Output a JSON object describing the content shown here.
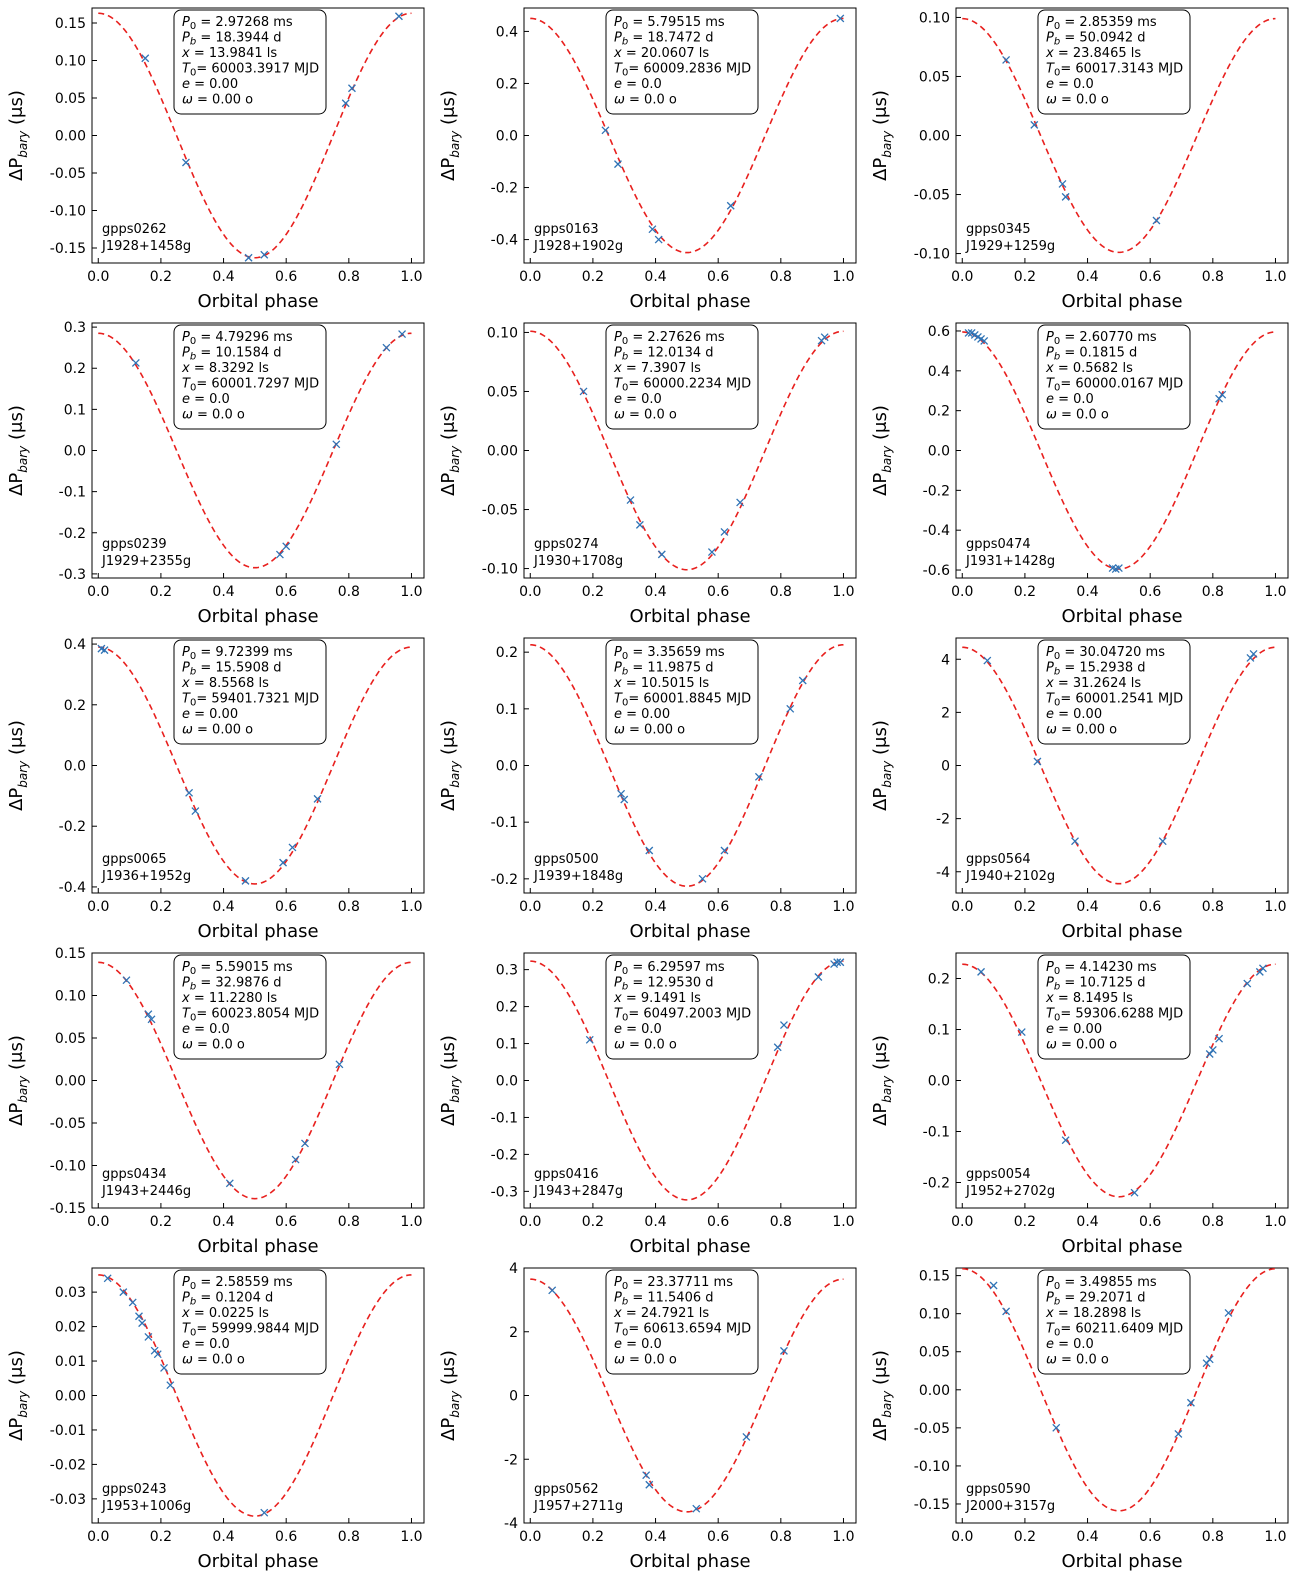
{
  "common": {
    "xlabel": "Orbital phase",
    "ylabel_prefix": "ΔP",
    "ylabel_sub": "bary",
    "ylabel_unit": " (μs)",
    "colors": {
      "curve": "#e8201e",
      "marker": "#2f73b5",
      "axis": "#000000"
    }
  },
  "chart_data": [
    {
      "type": "scatter",
      "name": "gpps0262",
      "psr": "J1928+1458g",
      "ylim": [
        -0.17,
        0.17
      ],
      "yticks": [
        "0.15",
        "0.10",
        "0.05",
        "0.00",
        "-0.05",
        "-0.10",
        "-0.15"
      ],
      "ytick_values": [
        0.15,
        0.1,
        0.05,
        0.0,
        -0.05,
        -0.1,
        -0.15
      ],
      "xticks": [
        "0.0",
        "0.2",
        "0.4",
        "0.6",
        "0.8",
        "1.0"
      ],
      "amplitude": 0.163,
      "x": [
        0.15,
        0.28,
        0.48,
        0.53,
        0.79,
        0.81,
        0.96
      ],
      "y": [
        0.103,
        -0.036,
        -0.163,
        -0.159,
        0.043,
        0.063,
        0.159
      ],
      "params": {
        "P0": "2.97268 ms",
        "Pb": "18.3944 d",
        "x": "13.9841 ls",
        "T0": "60003.3917 MJD",
        "e": "0.00",
        "omega": "0.00 o"
      }
    },
    {
      "type": "scatter",
      "name": "gpps0163",
      "psr": "J1928+1902g",
      "ylim": [
        -0.49,
        0.49
      ],
      "yticks": [
        "0.4",
        "0.2",
        "0.0",
        "-0.2",
        "-0.4"
      ],
      "ytick_values": [
        0.4,
        0.2,
        0.0,
        -0.2,
        -0.4
      ],
      "xticks": [
        "0.0",
        "0.2",
        "0.4",
        "0.6",
        "0.8",
        "1.0"
      ],
      "amplitude": 0.45,
      "x": [
        0.24,
        0.28,
        0.39,
        0.41,
        0.64,
        0.99
      ],
      "y": [
        0.02,
        -0.11,
        -0.36,
        -0.4,
        -0.27,
        0.45
      ],
      "params": {
        "P0": "5.79515 ms",
        "Pb": "18.7472 d",
        "x": "20.0607 ls",
        "T0": "60009.2836 MJD",
        "e": "0.0",
        "omega": "0.0 o"
      }
    },
    {
      "type": "scatter",
      "name": "gpps0345",
      "psr": "J1929+1259g",
      "ylim": [
        -0.108,
        0.108
      ],
      "yticks": [
        "0.10",
        "0.05",
        "0.00",
        "-0.05",
        "-0.10"
      ],
      "ytick_values": [
        0.1,
        0.05,
        0.0,
        -0.05,
        -0.1
      ],
      "xticks": [
        "0.0",
        "0.2",
        "0.4",
        "0.6",
        "0.8",
        "1.0"
      ],
      "amplitude": 0.099,
      "x": [
        0.14,
        0.23,
        0.32,
        0.33,
        0.62
      ],
      "y": [
        0.064,
        0.009,
        -0.041,
        -0.052,
        -0.072
      ],
      "params": {
        "P0": "2.85359 ms",
        "Pb": "50.0942 d",
        "x": "23.8465 ls",
        "T0": "60017.3143 MJD",
        "e": "0.0",
        "omega": "0.0 o"
      }
    },
    {
      "type": "scatter",
      "name": "gpps0239",
      "psr": "J1929+2355g",
      "ylim": [
        -0.31,
        0.31
      ],
      "yticks": [
        "0.3",
        "0.2",
        "0.1",
        "0.0",
        "-0.1",
        "-0.2",
        "-0.3"
      ],
      "ytick_values": [
        0.3,
        0.2,
        0.1,
        0.0,
        -0.1,
        -0.2,
        -0.3
      ],
      "xticks": [
        "0.0",
        "0.2",
        "0.4",
        "0.6",
        "0.8",
        "1.0"
      ],
      "amplitude": 0.285,
      "x": [
        0.12,
        0.58,
        0.6,
        0.76,
        0.92,
        0.97
      ],
      "y": [
        0.213,
        -0.253,
        -0.233,
        0.015,
        0.25,
        0.283
      ],
      "params": {
        "P0": "4.79296 ms",
        "Pb": "10.1584 d",
        "x": "8.3292 ls",
        "T0": "60001.7297 MJD",
        "e": "0.0",
        "omega": "0.0 o"
      }
    },
    {
      "type": "scatter",
      "name": "gpps0274",
      "psr": "J1930+1708g",
      "ylim": [
        -0.108,
        0.108
      ],
      "yticks": [
        "0.10",
        "0.05",
        "0.00",
        "-0.05",
        "-0.10"
      ],
      "ytick_values": [
        0.1,
        0.05,
        0.0,
        -0.05,
        -0.1
      ],
      "xticks": [
        "0.0",
        "0.2",
        "0.4",
        "0.6",
        "0.8",
        "1.0"
      ],
      "amplitude": 0.101,
      "x": [
        0.17,
        0.32,
        0.35,
        0.42,
        0.58,
        0.62,
        0.67,
        0.93,
        0.94
      ],
      "y": [
        0.05,
        -0.042,
        -0.063,
        -0.088,
        -0.086,
        -0.069,
        -0.044,
        0.093,
        0.096
      ],
      "params": {
        "P0": "2.27626 ms",
        "Pb": "12.0134 d",
        "x": "7.3907 ls",
        "T0": "60000.2234 MJD",
        "e": "0.0",
        "omega": "0.0 o"
      }
    },
    {
      "type": "scatter",
      "name": "gpps0474",
      "psr": "J1931+1428g",
      "ylim": [
        -0.64,
        0.64
      ],
      "yticks": [
        "0.6",
        "0.4",
        "0.2",
        "0.0",
        "-0.2",
        "-0.4",
        "-0.6"
      ],
      "ytick_values": [
        0.6,
        0.4,
        0.2,
        0.0,
        -0.2,
        -0.4,
        -0.6
      ],
      "xticks": [
        "0.0",
        "0.2",
        "0.4",
        "0.6",
        "0.8",
        "1.0"
      ],
      "amplitude": 0.595,
      "x": [
        0.02,
        0.03,
        0.04,
        0.05,
        0.06,
        0.07,
        0.48,
        0.49,
        0.5,
        0.82,
        0.83
      ],
      "y": [
        0.59,
        0.59,
        0.58,
        0.57,
        0.56,
        0.55,
        -0.59,
        -0.595,
        -0.59,
        0.26,
        0.28
      ],
      "params": {
        "P0": "2.60770 ms",
        "Pb": "0.1815 d",
        "x": "0.5682 ls",
        "T0": "60000.0167 MJD",
        "e": "0.0",
        "omega": "0.0 o"
      }
    },
    {
      "type": "scatter",
      "name": "gpps0065",
      "psr": "J1936+1952g",
      "ylim": [
        -0.42,
        0.42
      ],
      "yticks": [
        "0.4",
        "0.2",
        "0.0",
        "-0.2",
        "-0.4"
      ],
      "ytick_values": [
        0.4,
        0.2,
        0.0,
        -0.2,
        -0.4
      ],
      "xticks": [
        "0.0",
        "0.2",
        "0.4",
        "0.6",
        "0.8",
        "1.0"
      ],
      "amplitude": 0.39,
      "x": [
        0.01,
        0.02,
        0.29,
        0.31,
        0.47,
        0.59,
        0.62,
        0.7
      ],
      "y": [
        0.385,
        0.38,
        -0.09,
        -0.15,
        -0.38,
        -0.32,
        -0.27,
        -0.11
      ],
      "params": {
        "P0": "9.72399 ms",
        "Pb": "15.5908 d",
        "x": "8.5568 ls",
        "T0": "59401.7321 MJD",
        "e": "0.00",
        "omega": "0.00 o"
      }
    },
    {
      "type": "scatter",
      "name": "gpps0500",
      "psr": "J1939+1848g",
      "ylim": [
        -0.225,
        0.225
      ],
      "yticks": [
        "0.2",
        "0.1",
        "0.0",
        "-0.1",
        "-0.2"
      ],
      "ytick_values": [
        0.2,
        0.1,
        0.0,
        -0.1,
        -0.2
      ],
      "xticks": [
        "0.0",
        "0.2",
        "0.4",
        "0.6",
        "0.8",
        "1.0"
      ],
      "amplitude": 0.213,
      "x": [
        0.29,
        0.3,
        0.38,
        0.55,
        0.62,
        0.73,
        0.83,
        0.87
      ],
      "y": [
        -0.05,
        -0.06,
        -0.15,
        -0.2,
        -0.15,
        -0.02,
        0.1,
        0.15
      ],
      "params": {
        "P0": "3.35659 ms",
        "Pb": "11.9875 d",
        "x": "10.5015 ls",
        "T0": "60001.8845 MJD",
        "e": "0.00",
        "omega": "0.00 o"
      }
    },
    {
      "type": "scatter",
      "name": "gpps0564",
      "psr": "J1940+2102g",
      "ylim": [
        -4.8,
        4.8
      ],
      "yticks": [
        "4",
        "2",
        "0",
        "-2",
        "-4"
      ],
      "ytick_values": [
        4,
        2,
        0,
        -2,
        -4
      ],
      "xticks": [
        "0.0",
        "0.2",
        "0.4",
        "0.6",
        "0.8",
        "1.0"
      ],
      "amplitude": 4.45,
      "x": [
        0.08,
        0.24,
        0.36,
        0.64,
        0.92,
        0.93
      ],
      "y": [
        3.95,
        0.15,
        -2.85,
        -2.85,
        4.05,
        4.2
      ],
      "params": {
        "P0": "30.04720 ms",
        "Pb": "15.2938 d",
        "x": "31.2624 ls",
        "T0": "60001.2541 MJD",
        "e": "0.00",
        "omega": "0.00 o"
      }
    },
    {
      "type": "scatter",
      "name": "gpps0434",
      "psr": "J1943+2446g",
      "ylim": [
        -0.15,
        0.15
      ],
      "yticks": [
        "0.15",
        "0.10",
        "0.05",
        "0.00",
        "-0.05",
        "-0.10",
        "-0.15"
      ],
      "ytick_values": [
        0.15,
        0.1,
        0.05,
        0.0,
        -0.05,
        -0.1,
        -0.15
      ],
      "xticks": [
        "0.0",
        "0.2",
        "0.4",
        "0.6",
        "0.8",
        "1.0"
      ],
      "amplitude": 0.139,
      "x": [
        0.09,
        0.16,
        0.17,
        0.42,
        0.63,
        0.66,
        0.77
      ],
      "y": [
        0.118,
        0.078,
        0.072,
        -0.121,
        -0.093,
        -0.074,
        0.019
      ],
      "params": {
        "P0": "5.59015 ms",
        "Pb": "32.9876 d",
        "x": "11.2280 ls",
        "T0": "60023.8054 MJD",
        "e": "0.0",
        "omega": "0.0 o"
      }
    },
    {
      "type": "scatter",
      "name": "gpps0416",
      "psr": "J1943+2847g",
      "ylim": [
        -0.345,
        0.345
      ],
      "yticks": [
        "0.3",
        "0.2",
        "0.1",
        "0.0",
        "-0.1",
        "-0.2",
        "-0.3"
      ],
      "ytick_values": [
        0.3,
        0.2,
        0.1,
        0.0,
        -0.1,
        -0.2,
        -0.3
      ],
      "xticks": [
        "0.0",
        "0.2",
        "0.4",
        "0.6",
        "0.8",
        "1.0"
      ],
      "amplitude": 0.323,
      "x": [
        0.19,
        0.79,
        0.81,
        0.92,
        0.97,
        0.98,
        0.99
      ],
      "y": [
        0.11,
        0.09,
        0.15,
        0.28,
        0.315,
        0.32,
        0.32
      ],
      "params": {
        "P0": "6.29597 ms",
        "Pb": "12.9530 d",
        "x": "9.1491 ls",
        "T0": "60497.2003 MJD",
        "e": "0.0",
        "omega": "0.0 o"
      }
    },
    {
      "type": "scatter",
      "name": "gpps0054",
      "psr": "J1952+2702g",
      "ylim": [
        -0.25,
        0.25
      ],
      "yticks": [
        "0.2",
        "0.1",
        "0.0",
        "-0.1",
        "-0.2"
      ],
      "ytick_values": [
        0.2,
        0.1,
        0.0,
        -0.1,
        -0.2
      ],
      "xticks": [
        "0.0",
        "0.2",
        "0.4",
        "0.6",
        "0.8",
        "1.0"
      ],
      "amplitude": 0.228,
      "x": [
        0.06,
        0.19,
        0.33,
        0.55,
        0.79,
        0.8,
        0.82,
        0.91,
        0.95,
        0.96
      ],
      "y": [
        0.213,
        0.095,
        -0.117,
        -0.22,
        0.052,
        0.06,
        0.082,
        0.19,
        0.213,
        0.22
      ],
      "params": {
        "P0": "4.14230 ms",
        "Pb": "10.7125 d",
        "x": "8.1495 ls",
        "T0": "59306.6288 MJD",
        "e": "0.00",
        "omega": "0.00 o"
      }
    },
    {
      "type": "scatter",
      "name": "gpps0243",
      "psr": "J1953+1006g",
      "ylim": [
        -0.037,
        0.037
      ],
      "yticks": [
        "0.03",
        "0.02",
        "0.01",
        "0.00",
        "-0.01",
        "-0.02",
        "-0.03"
      ],
      "ytick_values": [
        0.03,
        0.02,
        0.01,
        0.0,
        -0.01,
        -0.02,
        -0.03
      ],
      "xticks": [
        "0.0",
        "0.2",
        "0.4",
        "0.6",
        "0.8",
        "1.0"
      ],
      "amplitude": 0.035,
      "x": [
        0.03,
        0.08,
        0.11,
        0.13,
        0.14,
        0.16,
        0.18,
        0.19,
        0.21,
        0.23,
        0.53
      ],
      "y": [
        0.034,
        0.03,
        0.027,
        0.023,
        0.021,
        0.017,
        0.013,
        0.012,
        0.008,
        0.003,
        -0.034
      ],
      "params": {
        "P0": "2.58559 ms",
        "Pb": "0.1204 d",
        "x": "0.0225 ls",
        "T0": "59999.9844 MJD",
        "e": "0.0",
        "omega": "0.0 o"
      }
    },
    {
      "type": "scatter",
      "name": "gpps0562",
      "psr": "J1957+2711g",
      "ylim": [
        -4.0,
        4.0
      ],
      "yticks": [
        "4",
        "2",
        "0",
        "-2",
        "-4"
      ],
      "ytick_values": [
        4,
        2,
        0,
        -2,
        -4
      ],
      "xticks": [
        "0.0",
        "0.2",
        "0.4",
        "0.6",
        "0.8",
        "1.0"
      ],
      "amplitude": 3.65,
      "x": [
        0.07,
        0.37,
        0.38,
        0.53,
        0.69,
        0.81
      ],
      "y": [
        3.3,
        -2.5,
        -2.8,
        -3.55,
        -1.3,
        1.4
      ],
      "params": {
        "P0": "23.37711 ms",
        "Pb": "11.5406 d",
        "x": "24.7921 ls",
        "T0": "60613.6594 MJD",
        "e": "0.0",
        "omega": "0.0 o"
      }
    },
    {
      "type": "scatter",
      "name": "gpps0590",
      "psr": "J2000+3157g",
      "ylim": [
        -0.175,
        0.16
      ],
      "yticks": [
        "0.15",
        "0.10",
        "0.05",
        "0.00",
        "-0.05",
        "-0.10",
        "-0.15"
      ],
      "ytick_values": [
        0.15,
        0.1,
        0.05,
        0.0,
        -0.05,
        -0.1,
        -0.15
      ],
      "xticks": [
        "0.0",
        "0.2",
        "0.4",
        "0.6",
        "0.8",
        "1.0"
      ],
      "amplitude": 0.159,
      "x": [
        0.1,
        0.14,
        0.3,
        0.69,
        0.73,
        0.78,
        0.79,
        0.85
      ],
      "y": [
        0.137,
        0.103,
        -0.05,
        -0.058,
        -0.017,
        0.035,
        0.04,
        0.101
      ],
      "params": {
        "P0": "3.49855 ms",
        "Pb": "29.2071 d",
        "x": "18.2898 ls",
        "T0": "60211.6409 MJD",
        "e": "0.0",
        "omega": "0.0 o"
      }
    }
  ]
}
